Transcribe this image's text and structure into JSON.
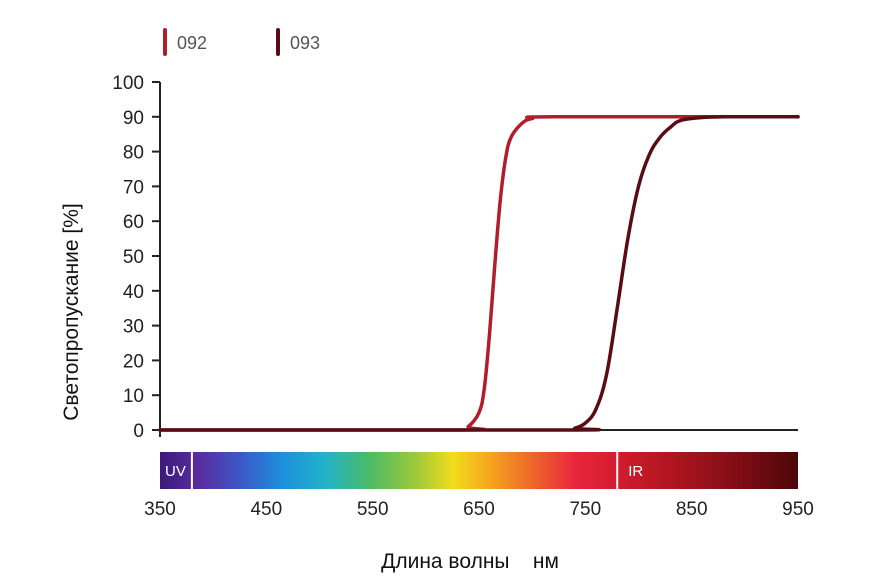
{
  "chart_data": {
    "type": "line",
    "xlabel": "Длина волны    нм",
    "ylabel": "Светопропускание  [%]",
    "xlim": [
      350,
      950
    ],
    "ylim": [
      0,
      100
    ],
    "x_ticks": [
      350,
      450,
      550,
      650,
      750,
      850,
      950
    ],
    "y_ticks": [
      0,
      10,
      20,
      30,
      40,
      50,
      60,
      70,
      80,
      90,
      100
    ],
    "grid": false,
    "legend_position": "top-left",
    "spectrum_labels": {
      "uv": "UV",
      "ir": "IR"
    },
    "uv_boundary_nm": 380,
    "ir_boundary_nm": 780,
    "series": [
      {
        "name": "092",
        "color": "#b01e2e",
        "points": [
          [
            350,
            0
          ],
          [
            630,
            0
          ],
          [
            640,
            1
          ],
          [
            650,
            5
          ],
          [
            655,
            12
          ],
          [
            660,
            28
          ],
          [
            665,
            48
          ],
          [
            670,
            66
          ],
          [
            675,
            78
          ],
          [
            680,
            84
          ],
          [
            690,
            88
          ],
          [
            700,
            89.5
          ],
          [
            720,
            90
          ],
          [
            950,
            90
          ]
        ]
      },
      {
        "name": "093",
        "color": "#5a0c14",
        "points": [
          [
            350,
            0
          ],
          [
            730,
            0
          ],
          [
            740,
            0.5
          ],
          [
            750,
            2
          ],
          [
            760,
            6
          ],
          [
            770,
            16
          ],
          [
            780,
            35
          ],
          [
            790,
            55
          ],
          [
            800,
            70
          ],
          [
            810,
            79
          ],
          [
            820,
            84
          ],
          [
            830,
            87
          ],
          [
            840,
            89
          ],
          [
            860,
            89.8
          ],
          [
            880,
            90
          ],
          [
            950,
            90
          ]
        ]
      }
    ]
  }
}
